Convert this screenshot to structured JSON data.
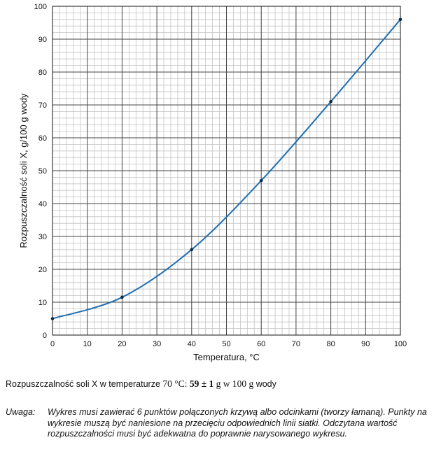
{
  "chart_data": {
    "type": "line",
    "title": "",
    "xlabel": "Temperatura, °C",
    "ylabel": "Rozpuszczalność soli X, g/100 g wody",
    "xlim": [
      0,
      100
    ],
    "ylim": [
      0,
      100
    ],
    "x_ticks": [
      "0",
      "10",
      "20",
      "30",
      "40",
      "50",
      "60",
      "70",
      "80",
      "90",
      "100"
    ],
    "y_ticks": [
      "0",
      "10",
      "20",
      "30",
      "40",
      "50",
      "60",
      "70",
      "80",
      "90",
      "100"
    ],
    "x_minor_step": 2,
    "y_minor_step": 2,
    "grid": true,
    "line_color": "#1f6fb2",
    "point_color": "#0a2a44",
    "series": [
      {
        "name": "",
        "x": [
          0,
          20,
          40,
          60,
          80,
          100
        ],
        "y": [
          5,
          11.5,
          26,
          47,
          71,
          96
        ]
      }
    ]
  },
  "answer": {
    "prefix": "Rozpuszczalność soli X w temperaturze ",
    "temp": "70 °C: ",
    "value": "59 ± 1",
    "unit": " g w 100 g",
    "suffix": " wody"
  },
  "note": {
    "label": "Uwaga:",
    "text": "Wykres musi zawierać 6 punktów połączonych krzywą albo odcinkami (tworzy łamaną). Punkty na wykresie muszą być naniesione na przecięciu odpowiednich linii siatki. Odczytana wartość rozpuszczalności musi być adekwatna do poprawnie narysowanego wykresu."
  }
}
